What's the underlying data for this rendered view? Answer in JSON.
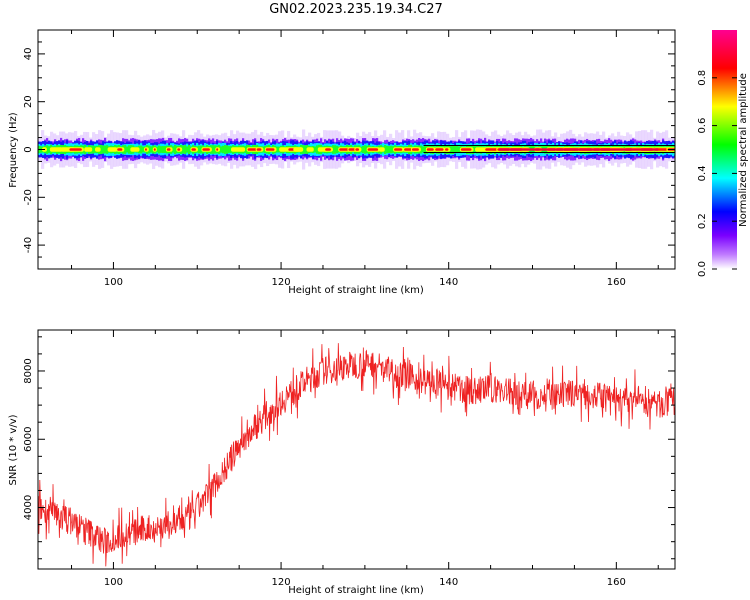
{
  "title": "GN02.2023.235.19.34.C27",
  "chart_data": [
    {
      "type": "heatmap",
      "xlabel": "Height of straight line (km)",
      "ylabel": "Frequency (Hz)",
      "xlim": [
        91,
        167
      ],
      "ylim": [
        -50,
        50
      ],
      "x_ticks": [
        100,
        120,
        140,
        160
      ],
      "y_ticks": [
        -40,
        -20,
        0,
        20,
        40
      ],
      "band_center_hz": 0,
      "band_halfwidth_hz": 3,
      "trace_hz": 0,
      "colorbar": {
        "label": "Normalized spectral amplitude",
        "range": [
          0,
          1
        ],
        "ticks": [
          0.0,
          0.2,
          0.4,
          0.6,
          0.8
        ],
        "colors": [
          "#ffffff",
          "#7a00ff",
          "#0000ff",
          "#00ffff",
          "#00ff00",
          "#ffff00",
          "#ff0000",
          "#ff0090"
        ]
      }
    },
    {
      "type": "line",
      "xlabel": "Height of straight line (km)",
      "ylabel": "SNR (10 * v/v)",
      "xlim": [
        91,
        167
      ],
      "ylim": [
        2200,
        9200
      ],
      "x_ticks": [
        100,
        120,
        140,
        160
      ],
      "y_ticks": [
        4000,
        6000,
        8000
      ],
      "color": "#ee2222",
      "x": [
        91,
        93,
        95,
        97,
        99,
        101,
        103,
        105,
        107,
        109,
        111,
        113,
        115,
        117,
        119,
        121,
        123,
        125,
        127,
        129,
        131,
        133,
        135,
        137,
        139,
        141,
        143,
        145,
        147,
        149,
        151,
        153,
        155,
        157,
        159,
        161,
        163,
        165,
        167
      ],
      "y": [
        4000,
        3800,
        3600,
        3300,
        3000,
        3200,
        3300,
        3400,
        3500,
        3700,
        4300,
        5000,
        5800,
        6400,
        6900,
        7300,
        7700,
        8000,
        8100,
        8200,
        8200,
        8000,
        7800,
        7700,
        7600,
        7500,
        7400,
        7500,
        7400,
        7300,
        7300,
        7200,
        7400,
        7300,
        7200,
        7100,
        7200,
        7000,
        7100
      ]
    }
  ]
}
